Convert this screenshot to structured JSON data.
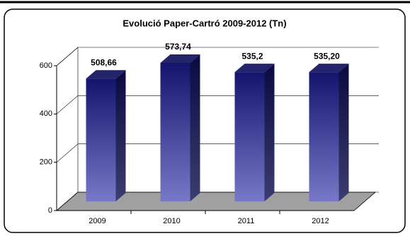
{
  "chart_data": {
    "type": "bar3d",
    "title": "Evolució Paper-Cartró 2009-2012 (Tn)",
    "categories": [
      "2009",
      "2010",
      "2011",
      "2012"
    ],
    "values": [
      508.66,
      573.74,
      535.2,
      535.2
    ],
    "value_labels": [
      "508,66",
      "573,74",
      "535,2",
      "535,20"
    ],
    "ylim": [
      0,
      600
    ],
    "yticks": [
      0,
      200,
      400,
      600
    ],
    "grid": true
  }
}
